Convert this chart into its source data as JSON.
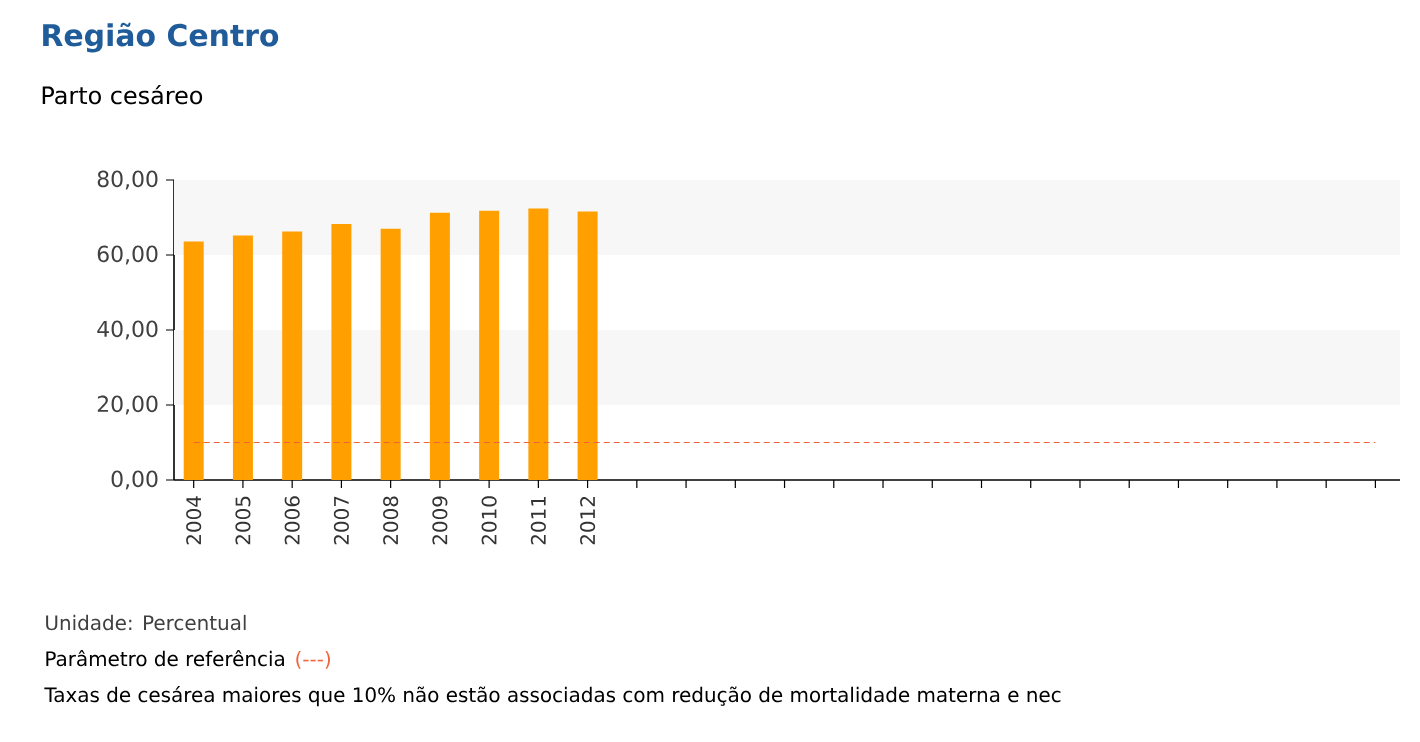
{
  "chart_data": {
    "type": "bar",
    "title": "Região Centro",
    "subtitle": "Parto cesáreo",
    "categories": [
      "2004",
      "2005",
      "2006",
      "2007",
      "2008",
      "2009",
      "2010",
      "2011",
      "2012",
      null,
      null,
      null,
      null,
      null,
      null,
      null,
      null,
      null,
      null,
      null,
      null,
      null,
      null,
      null,
      null
    ],
    "values": [
      63.6,
      65.2,
      66.3,
      68.3,
      67.0,
      71.3,
      71.8,
      72.4,
      71.6,
      null,
      null,
      null,
      null,
      null,
      null,
      null,
      null,
      null,
      null,
      null,
      null,
      null,
      null,
      null,
      null
    ],
    "color": "#ffa000",
    "ylim": [
      0,
      80
    ],
    "yticks": [
      {
        "value": 0,
        "label": "0,00"
      },
      {
        "value": 20,
        "label": "20,00"
      },
      {
        "value": 40,
        "label": "40,00"
      },
      {
        "value": 60,
        "label": "60,00"
      },
      {
        "value": 80,
        "label": "80,00"
      }
    ],
    "bands": [
      {
        "axis": "y",
        "from": 20,
        "to": 40,
        "color": "#f7f7f7"
      },
      {
        "axis": "y",
        "from": 60,
        "to": 80,
        "color": "#f7f7f7"
      }
    ],
    "ref_lines": [
      {
        "axis": "y",
        "value": 10,
        "label": "(---)",
        "color": "#f0643c",
        "line_style": "dashed"
      }
    ],
    "annotations": [
      "Unidade: Percentual",
      "Parâmetro de referência",
      "Taxas de cesárea maiores que 10% não estão associadas com redução de mortalidade materna e nec"
    ]
  }
}
